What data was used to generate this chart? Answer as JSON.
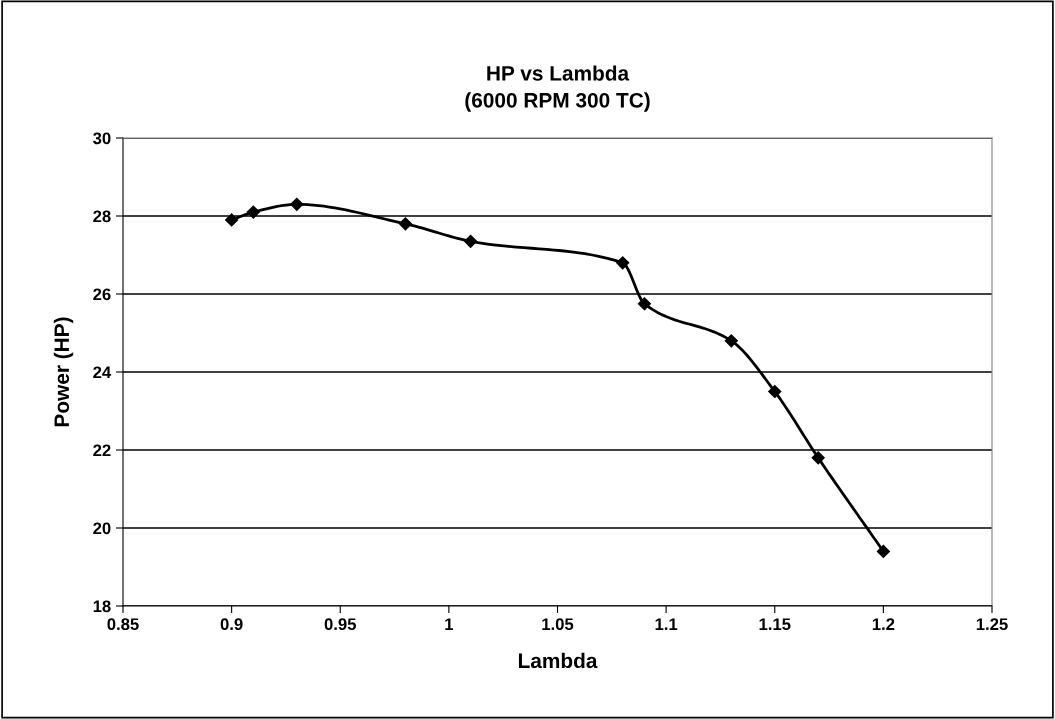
{
  "chart_data": {
    "type": "line",
    "title": "HP vs Lambda\n(6000 RPM 300 TC)",
    "xlabel": "Lambda",
    "ylabel": "Power (HP)",
    "x": [
      0.9,
      0.91,
      0.93,
      0.98,
      1.01,
      1.08,
      1.09,
      1.13,
      1.15,
      1.17,
      1.2
    ],
    "series": [
      {
        "color": "#000000",
        "values": [
          27.9,
          28.1,
          28.3,
          27.8,
          27.35,
          26.8,
          25.75,
          24.8,
          23.5,
          21.8,
          19.4
        ]
      }
    ],
    "xlim": [
      0.85,
      1.25
    ],
    "xticks": [
      0.85,
      0.9,
      0.95,
      1,
      1.05,
      1.1,
      1.15,
      1.2,
      1.25
    ],
    "ylim": [
      18,
      30
    ],
    "yticks": [
      18,
      20,
      22,
      24,
      26,
      28,
      30
    ],
    "grid": "y",
    "legend": false,
    "marker": "diamond",
    "line_style": "solid"
  }
}
